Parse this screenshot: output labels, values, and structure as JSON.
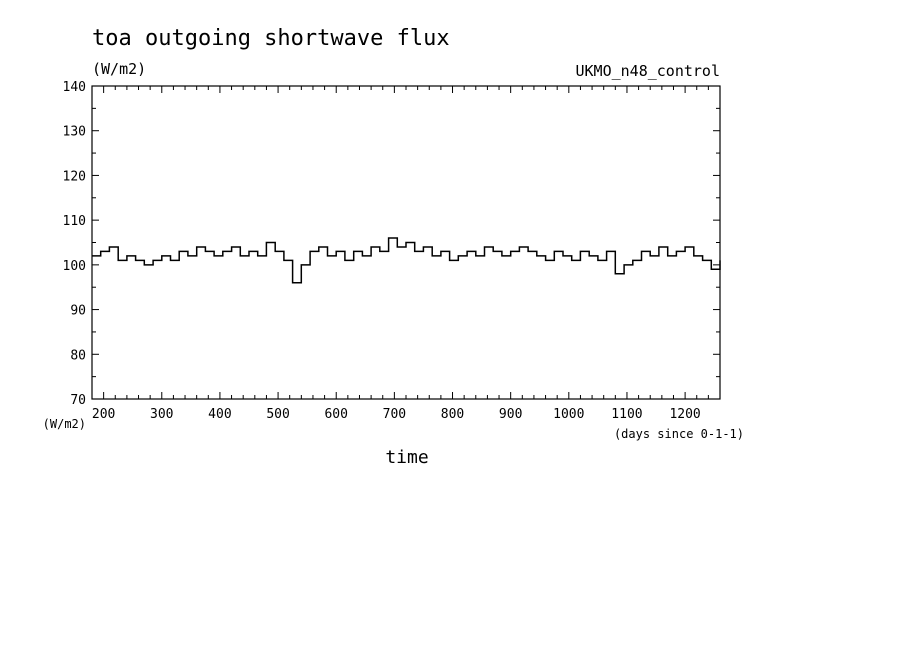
{
  "chart_data": {
    "type": "line",
    "title": "toa outgoing shortwave flux",
    "units_label": "(W/m2)",
    "source_label": "UKMO_n48_control",
    "ylabel": "(W/m2)",
    "xlabel": "time",
    "x_units": "(days since 0-1-1)",
    "xlim": [
      180,
      1260
    ],
    "ylim": [
      70,
      140
    ],
    "x_ticks": [
      200,
      300,
      400,
      500,
      600,
      700,
      800,
      900,
      1000,
      1100,
      1200
    ],
    "y_ticks": [
      70,
      80,
      90,
      100,
      110,
      120,
      130,
      140
    ],
    "grid": false,
    "line_color": "#000000",
    "series": [
      {
        "x": [
          180,
          195,
          210,
          225,
          240,
          255,
          270,
          285,
          300,
          315,
          330,
          345,
          360,
          375,
          390,
          405,
          420,
          435,
          450,
          465,
          480,
          495,
          510,
          525,
          540,
          555,
          570,
          585,
          600,
          615,
          630,
          645,
          660,
          675,
          690,
          705,
          720,
          735,
          750,
          765,
          780,
          795,
          810,
          825,
          840,
          855,
          870,
          885,
          900,
          915,
          930,
          945,
          960,
          975,
          990,
          1005,
          1020,
          1035,
          1050,
          1065,
          1080,
          1095,
          1110,
          1125,
          1140,
          1155,
          1170,
          1185,
          1200,
          1215,
          1230,
          1245,
          1260
        ],
        "y": [
          102,
          103,
          104,
          101,
          102,
          101,
          100,
          101,
          102,
          101,
          103,
          102,
          104,
          103,
          102,
          103,
          104,
          102,
          103,
          102,
          105,
          103,
          101,
          96,
          100,
          103,
          104,
          102,
          103,
          101,
          103,
          102,
          104,
          103,
          106,
          104,
          105,
          103,
          104,
          102,
          103,
          101,
          102,
          103,
          102,
          104,
          103,
          102,
          103,
          104,
          103,
          102,
          101,
          103,
          102,
          101,
          103,
          102,
          101,
          103,
          98,
          100,
          101,
          103,
          102,
          104,
          102,
          103,
          104,
          102,
          101,
          99,
          101
        ]
      }
    ]
  }
}
